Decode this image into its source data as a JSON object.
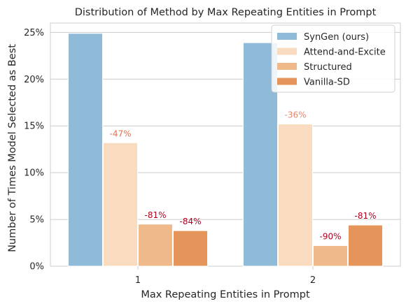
{
  "chart_data": {
    "type": "bar",
    "title": "Distribution of Method by Max Repeating Entities in Prompt",
    "xlabel": "Max Repeating Entities in Prompt",
    "ylabel": "Number of Times Model Selected as Best",
    "categories": [
      "1",
      "2"
    ],
    "ylim": [
      0,
      26
    ],
    "yticks": [
      0,
      5,
      10,
      15,
      20,
      25
    ],
    "ytick_labels": [
      "0%",
      "5%",
      "10%",
      "15%",
      "20%",
      "25%"
    ],
    "grid": "horizontal",
    "legend": "top-right",
    "series": [
      {
        "name": "SynGen (ours)",
        "color": "#8fbbd9",
        "values": [
          24.9,
          23.9
        ],
        "labels": [
          "",
          ""
        ],
        "label_colors": [
          "",
          ""
        ]
      },
      {
        "name": "Attend-and-Excite",
        "color": "#f9dcbf",
        "values": [
          13.2,
          15.2
        ],
        "labels": [
          "-47%",
          "-36%"
        ],
        "label_colors": [
          "#e6714e",
          "#e8836a"
        ]
      },
      {
        "name": "Structured",
        "color": "#f0b98a",
        "values": [
          4.5,
          2.2
        ],
        "labels": [
          "-81%",
          "-90%"
        ],
        "label_colors": [
          "#b0001e",
          "#b0001e"
        ]
      },
      {
        "name": "Vanilla-SD",
        "color": "#e5955a",
        "values": [
          3.8,
          4.4
        ],
        "labels": [
          "-84%",
          "-81%"
        ],
        "label_colors": [
          "#b0001e",
          "#b0001e"
        ]
      }
    ]
  }
}
